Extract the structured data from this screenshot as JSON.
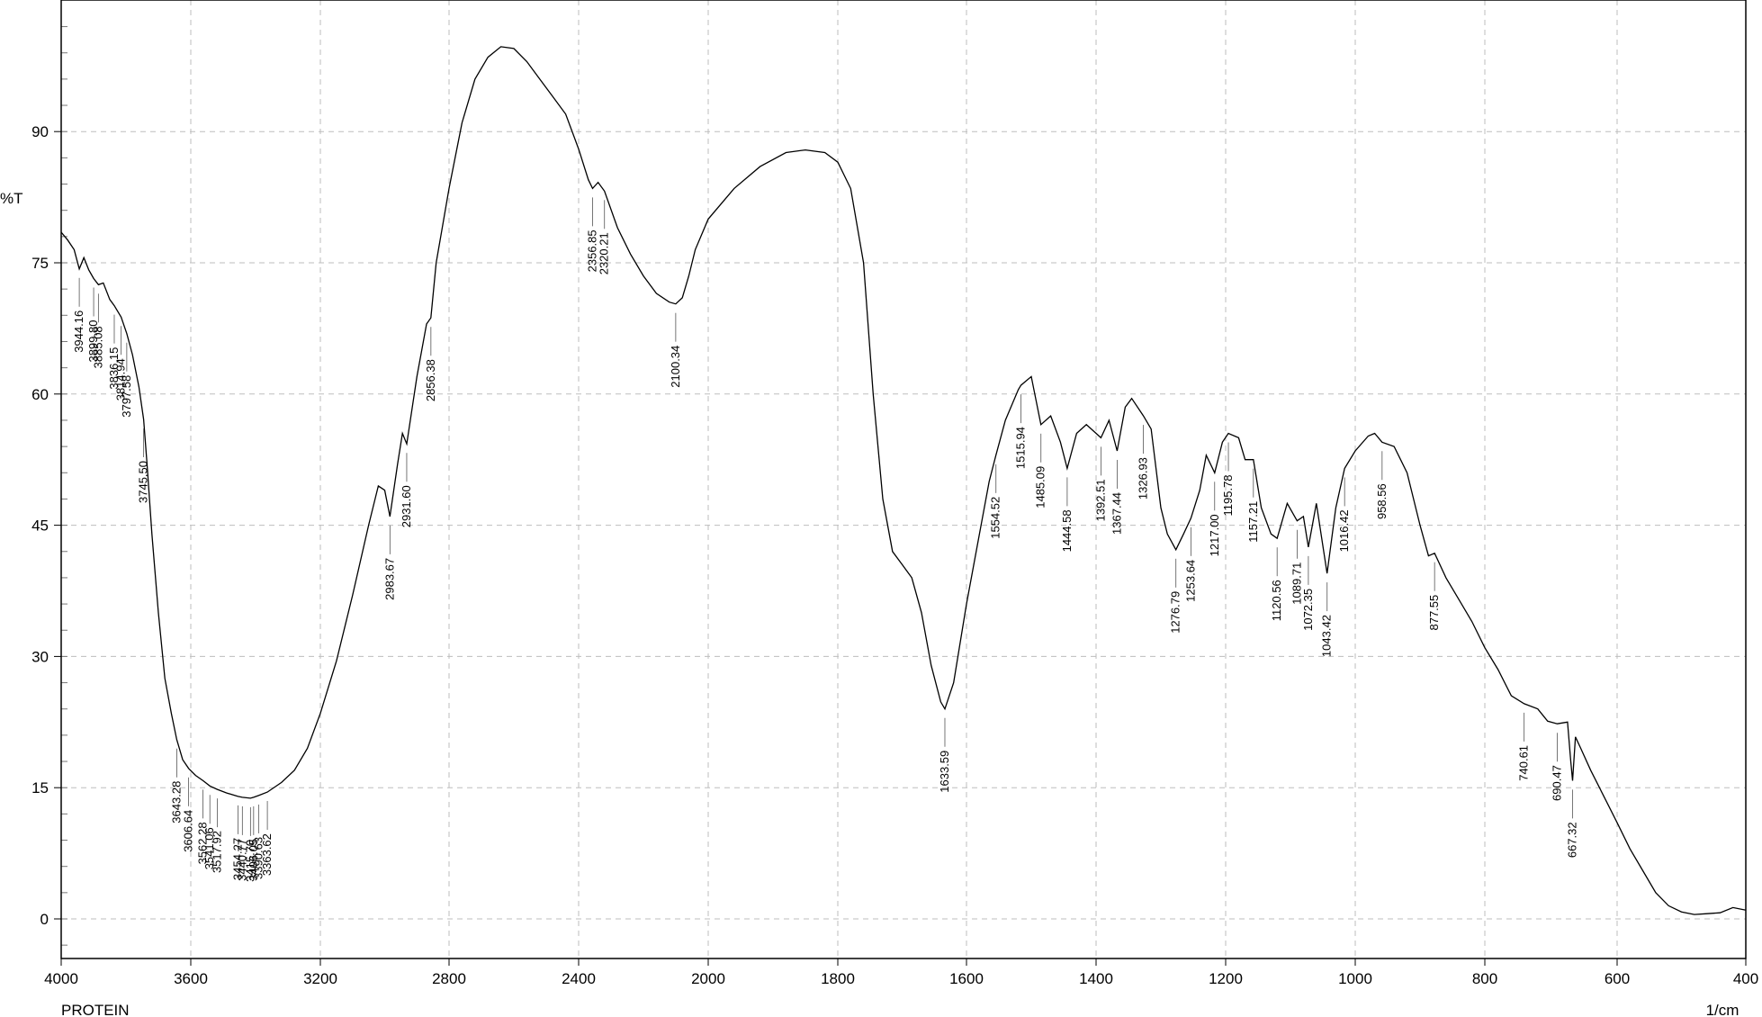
{
  "chart_data": {
    "type": "line",
    "title": "",
    "sample_label": "PROTEIN",
    "ylabel": "%T",
    "xlabel": "1/cm",
    "xlim": [
      4000,
      400
    ],
    "ylim": [
      -4.5,
      103
    ],
    "x_ticks": [
      4000,
      3600,
      3200,
      2800,
      2400,
      2000,
      1800,
      1600,
      1400,
      1200,
      1000,
      800,
      600,
      400
    ],
    "y_ticks": [
      0,
      15,
      30,
      45,
      60,
      75,
      90
    ],
    "grid": true,
    "line_color": "#000000",
    "series": [
      {
        "points": [
          [
            4000,
            78.5
          ],
          [
            3980,
            77.6
          ],
          [
            3960,
            76.5
          ],
          [
            3944.16,
            74.3
          ],
          [
            3930,
            75.6
          ],
          [
            3915,
            74.2
          ],
          [
            3899.8,
            73.2
          ],
          [
            3885.08,
            72.5
          ],
          [
            3870,
            72.7
          ],
          [
            3850,
            70.8
          ],
          [
            3836.15,
            70.1
          ],
          [
            3814.94,
            68.8
          ],
          [
            3797.58,
            66.9
          ],
          [
            3780,
            64.5
          ],
          [
            3760,
            60.8
          ],
          [
            3745.5,
            57.1
          ],
          [
            3735,
            52
          ],
          [
            3720,
            44
          ],
          [
            3700,
            35
          ],
          [
            3680,
            27.5
          ],
          [
            3660,
            23.5
          ],
          [
            3643.28,
            20.5
          ],
          [
            3625,
            18.2
          ],
          [
            3606.64,
            17.2
          ],
          [
            3585,
            16.4
          ],
          [
            3562.28,
            15.8
          ],
          [
            3541.06,
            15.2
          ],
          [
            3517.92,
            14.8
          ],
          [
            3490,
            14.4
          ],
          [
            3454.27,
            14
          ],
          [
            3440.77,
            13.9
          ],
          [
            3415.7,
            13.8
          ],
          [
            3406.05,
            13.9
          ],
          [
            3390.63,
            14.1
          ],
          [
            3363.62,
            14.5
          ],
          [
            3320,
            15.6
          ],
          [
            3280,
            17
          ],
          [
            3240,
            19.5
          ],
          [
            3200,
            23.5
          ],
          [
            3150,
            29.5
          ],
          [
            3100,
            37
          ],
          [
            3050,
            45
          ],
          [
            3020,
            49.5
          ],
          [
            3000,
            49
          ],
          [
            2983.67,
            46
          ],
          [
            2960,
            52
          ],
          [
            2945,
            55.5
          ],
          [
            2931.6,
            54.3
          ],
          [
            2900,
            62
          ],
          [
            2870,
            68
          ],
          [
            2856.38,
            68.7
          ],
          [
            2840,
            75
          ],
          [
            2800,
            83.5
          ],
          [
            2760,
            91
          ],
          [
            2720,
            96
          ],
          [
            2680,
            98.5
          ],
          [
            2640,
            99.7
          ],
          [
            2600,
            99.5
          ],
          [
            2560,
            98
          ],
          [
            2520,
            96
          ],
          [
            2480,
            94
          ],
          [
            2440,
            92
          ],
          [
            2400,
            88
          ],
          [
            2370,
            84.5
          ],
          [
            2356.85,
            83.5
          ],
          [
            2340,
            84.2
          ],
          [
            2320.21,
            83.2
          ],
          [
            2280,
            79
          ],
          [
            2240,
            76
          ],
          [
            2200,
            73.5
          ],
          [
            2160,
            71.5
          ],
          [
            2120,
            70.5
          ],
          [
            2100.34,
            70.3
          ],
          [
            2080,
            71
          ],
          [
            2060,
            73.5
          ],
          [
            2040,
            76.5
          ],
          [
            2000,
            80
          ],
          [
            1960,
            83.5
          ],
          [
            1920,
            86
          ],
          [
            1880,
            87.6
          ],
          [
            1850,
            87.9
          ],
          [
            1820,
            87.6
          ],
          [
            1800,
            86.5
          ],
          [
            1780,
            83.5
          ],
          [
            1760,
            75
          ],
          [
            1745,
            60
          ],
          [
            1730,
            48
          ],
          [
            1715,
            42
          ],
          [
            1700,
            40.5
          ],
          [
            1685,
            39
          ],
          [
            1670,
            35
          ],
          [
            1655,
            29
          ],
          [
            1640,
            24.8
          ],
          [
            1633.59,
            24
          ],
          [
            1620,
            27
          ],
          [
            1600,
            36
          ],
          [
            1580,
            44
          ],
          [
            1565,
            50
          ],
          [
            1554.52,
            53
          ],
          [
            1540,
            57
          ],
          [
            1520,
            60.5
          ],
          [
            1515.94,
            61
          ],
          [
            1500,
            62
          ],
          [
            1485.09,
            56.5
          ],
          [
            1470,
            57.5
          ],
          [
            1455,
            54.5
          ],
          [
            1444.58,
            51.5
          ],
          [
            1430,
            55.5
          ],
          [
            1415,
            56.5
          ],
          [
            1400,
            55.5
          ],
          [
            1392.51,
            55
          ],
          [
            1380,
            57
          ],
          [
            1367.44,
            53.5
          ],
          [
            1355,
            58.5
          ],
          [
            1345,
            59.5
          ],
          [
            1326.93,
            57.5
          ],
          [
            1315,
            56
          ],
          [
            1300,
            47
          ],
          [
            1290,
            44
          ],
          [
            1276.79,
            42.2
          ],
          [
            1265,
            44
          ],
          [
            1253.64,
            45.8
          ],
          [
            1240,
            49
          ],
          [
            1230,
            53
          ],
          [
            1217,
            51
          ],
          [
            1205,
            54.5
          ],
          [
            1195.78,
            55.5
          ],
          [
            1180,
            55
          ],
          [
            1170,
            52.5
          ],
          [
            1157.21,
            52.5
          ],
          [
            1145,
            47
          ],
          [
            1130,
            44
          ],
          [
            1120.56,
            43.5
          ],
          [
            1105,
            47.5
          ],
          [
            1089.71,
            45.5
          ],
          [
            1080,
            46
          ],
          [
            1072.35,
            42.5
          ],
          [
            1060,
            47.5
          ],
          [
            1043.42,
            39.5
          ],
          [
            1030,
            47
          ],
          [
            1016.42,
            51.5
          ],
          [
            1000,
            53.5
          ],
          [
            980,
            55.2
          ],
          [
            970,
            55.5
          ],
          [
            958.56,
            54.5
          ],
          [
            940,
            54
          ],
          [
            920,
            51
          ],
          [
            900,
            45
          ],
          [
            887,
            41.5
          ],
          [
            877.55,
            41.8
          ],
          [
            860,
            39
          ],
          [
            840,
            36.5
          ],
          [
            820,
            34
          ],
          [
            800,
            31
          ],
          [
            780,
            28.5
          ],
          [
            760,
            25.5
          ],
          [
            740.61,
            24.6
          ],
          [
            720,
            24
          ],
          [
            705,
            22.6
          ],
          [
            690.47,
            22.3
          ],
          [
            675,
            22.5
          ],
          [
            670,
            18
          ],
          [
            667.32,
            15.8
          ],
          [
            663,
            20.8
          ],
          [
            655,
            19.5
          ],
          [
            640,
            17
          ],
          [
            620,
            14
          ],
          [
            600,
            11
          ],
          [
            580,
            8
          ],
          [
            560,
            5.5
          ],
          [
            540,
            3
          ],
          [
            520,
            1.5
          ],
          [
            500,
            0.8
          ],
          [
            480,
            0.5
          ],
          [
            460,
            0.6
          ],
          [
            440,
            0.7
          ],
          [
            420,
            1.3
          ],
          [
            400,
            1
          ]
        ]
      }
    ],
    "peaks": [
      {
        "x": 3944.16,
        "label": "3944.16",
        "y": 74.3
      },
      {
        "x": 3899.8,
        "label": "3899.80",
        "y": 73.2
      },
      {
        "x": 3885.08,
        "label": "3885.08",
        "y": 72.5
      },
      {
        "x": 3836.15,
        "label": "3836.15",
        "y": 70.1
      },
      {
        "x": 3814.94,
        "label": "3814.94",
        "y": 68.8
      },
      {
        "x": 3797.58,
        "label": "3797.58",
        "y": 66.9
      },
      {
        "x": 3745.5,
        "label": "3745.50",
        "y": 57.1
      },
      {
        "x": 3643.28,
        "label": "3643.28",
        "y": 20.5
      },
      {
        "x": 3606.64,
        "label": "3606.64",
        "y": 17.2
      },
      {
        "x": 3562.28,
        "label": "3562.28",
        "y": 15.8
      },
      {
        "x": 3541.06,
        "label": "3541.06",
        "y": 15.2
      },
      {
        "x": 3517.92,
        "label": "3517.92",
        "y": 14.8
      },
      {
        "x": 3454.27,
        "label": "3454.27",
        "y": 14
      },
      {
        "x": 3440.77,
        "label": "3440.77",
        "y": 13.9
      },
      {
        "x": 3415.7,
        "label": "3415.70",
        "y": 13.8
      },
      {
        "x": 3406.05,
        "label": "3406.05",
        "y": 13.9
      },
      {
        "x": 3390.63,
        "label": "3390.63",
        "y": 14.1
      },
      {
        "x": 3363.62,
        "label": "3363.62",
        "y": 14.5
      },
      {
        "x": 2983.67,
        "label": "2983.67",
        "y": 46
      },
      {
        "x": 2931.6,
        "label": "2931.60",
        "y": 54.3
      },
      {
        "x": 2856.38,
        "label": "2856.38",
        "y": 68.7
      },
      {
        "x": 2356.85,
        "label": "2356.85",
        "y": 83.5
      },
      {
        "x": 2320.21,
        "label": "2320.21",
        "y": 83.2
      },
      {
        "x": 2100.34,
        "label": "2100.34",
        "y": 70.3
      },
      {
        "x": 1633.59,
        "label": "1633.59",
        "y": 24
      },
      {
        "x": 1554.52,
        "label": "1554.52",
        "y": 53
      },
      {
        "x": 1515.94,
        "label": "1515.94",
        "y": 61
      },
      {
        "x": 1485.09,
        "label": "1485.09",
        "y": 56.5
      },
      {
        "x": 1444.58,
        "label": "1444.58",
        "y": 51.5
      },
      {
        "x": 1392.51,
        "label": "1392.51",
        "y": 55
      },
      {
        "x": 1367.44,
        "label": "1367.44",
        "y": 53.5
      },
      {
        "x": 1326.93,
        "label": "1326.93",
        "y": 57.5
      },
      {
        "x": 1276.79,
        "label": "1276.79",
        "y": 42.2
      },
      {
        "x": 1253.64,
        "label": "1253.64",
        "y": 45.8
      },
      {
        "x": 1217.0,
        "label": "1217.00",
        "y": 51
      },
      {
        "x": 1195.78,
        "label": "1195.78",
        "y": 55.5
      },
      {
        "x": 1157.21,
        "label": "1157.21",
        "y": 52.5
      },
      {
        "x": 1120.56,
        "label": "1120.56",
        "y": 43.5
      },
      {
        "x": 1089.71,
        "label": "1089.71",
        "y": 45.5
      },
      {
        "x": 1072.35,
        "label": "1072.35",
        "y": 42.5
      },
      {
        "x": 1043.42,
        "label": "1043.42",
        "y": 39.5
      },
      {
        "x": 1016.42,
        "label": "1016.42",
        "y": 51.5
      },
      {
        "x": 958.56,
        "label": "958.56",
        "y": 54.5
      },
      {
        "x": 877.55,
        "label": "877.55",
        "y": 41.8
      },
      {
        "x": 740.61,
        "label": "740.61",
        "y": 24.6
      },
      {
        "x": 690.47,
        "label": "690.47",
        "y": 22.3
      },
      {
        "x": 667.32,
        "label": "667.32",
        "y": 15.8
      }
    ]
  }
}
